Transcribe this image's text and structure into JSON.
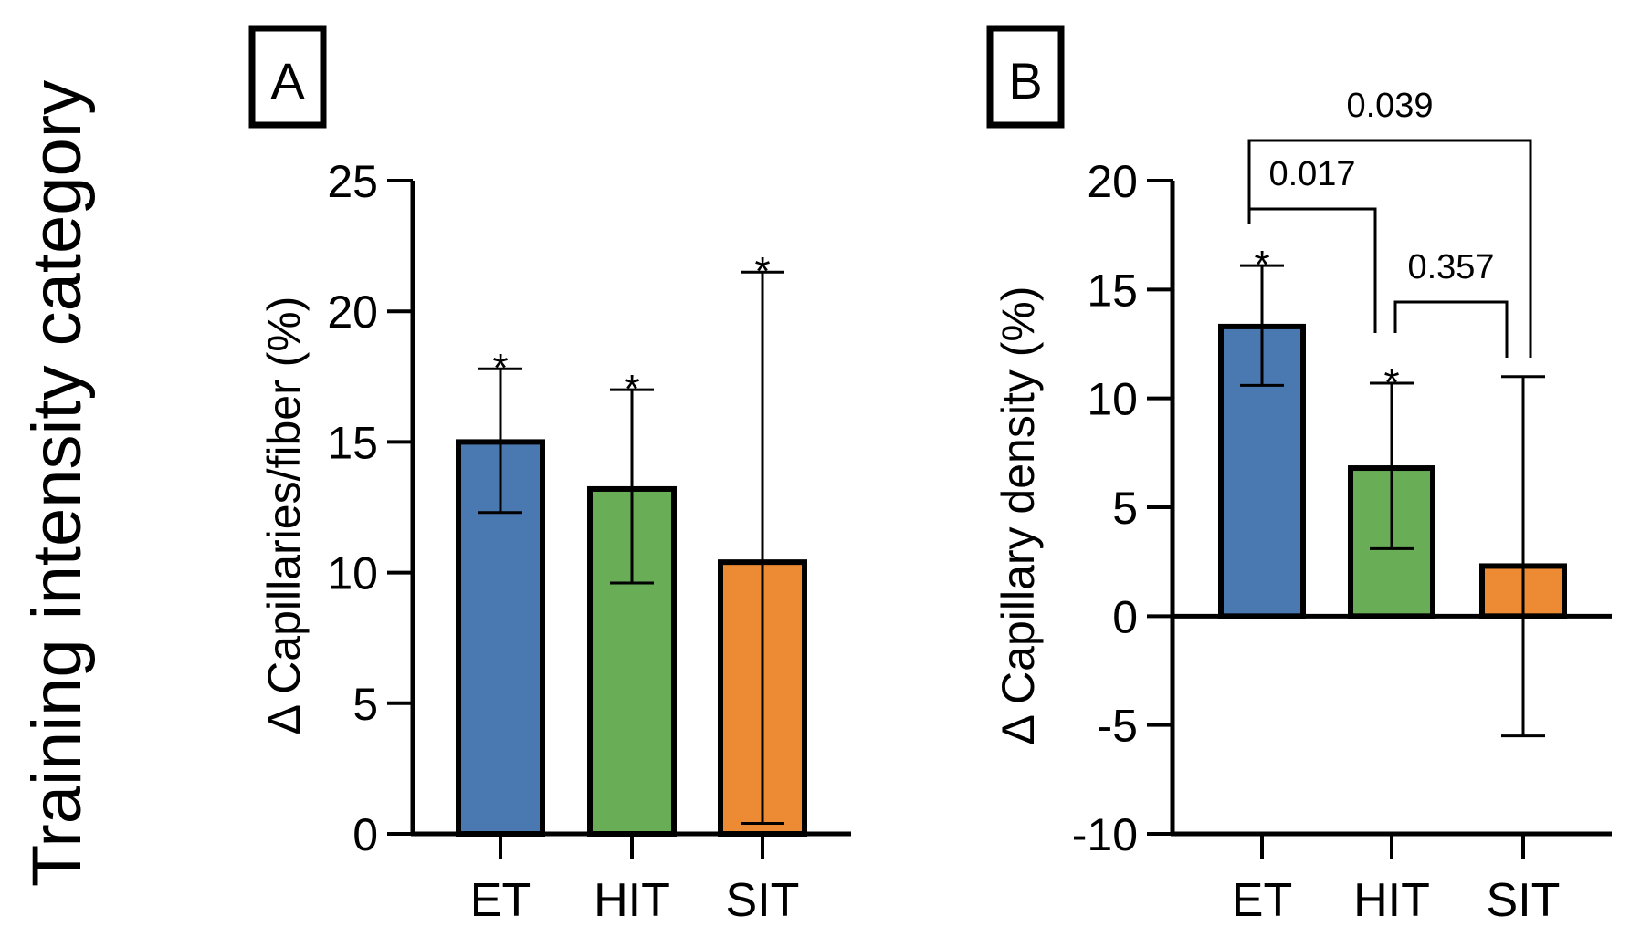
{
  "figure": {
    "left_label": "Training intensity category"
  },
  "chart_data": [
    {
      "type": "bar",
      "panel_label": "A",
      "ylabel": "Δ Capillaries/fiber (%)",
      "ylim": [
        0,
        25
      ],
      "yticks": [
        0,
        5,
        10,
        15,
        20,
        25
      ],
      "categories": [
        "ET",
        "HIT",
        "SIT"
      ],
      "values": [
        15.0,
        13.2,
        10.4
      ],
      "error_low": [
        12.3,
        9.6,
        0.4
      ],
      "error_high": [
        17.8,
        17.0,
        21.5
      ],
      "significance": [
        "*",
        "*",
        "*"
      ],
      "colors": [
        "#4a78b0",
        "#69ad57",
        "#ed8a34"
      ],
      "brackets": []
    },
    {
      "type": "bar",
      "panel_label": "B",
      "ylabel": "Δ Capillary density (%)",
      "ylim": [
        -10,
        20
      ],
      "yticks": [
        -10,
        -5,
        0,
        5,
        10,
        15,
        20
      ],
      "categories": [
        "ET",
        "HIT",
        "SIT"
      ],
      "values": [
        13.3,
        6.8,
        2.3
      ],
      "error_low": [
        10.6,
        3.1,
        -5.5
      ],
      "error_high": [
        16.1,
        10.7,
        11.0
      ],
      "significance": [
        "*",
        "*",
        ""
      ],
      "colors": [
        "#4a78b0",
        "#69ad57",
        "#ed8a34"
      ],
      "brackets": [
        {
          "from": 0,
          "to": 1,
          "label": "0.017"
        },
        {
          "from": 1,
          "to": 2,
          "label": "0.357"
        },
        {
          "from": 0,
          "to": 2,
          "label": "0.039"
        }
      ]
    }
  ]
}
